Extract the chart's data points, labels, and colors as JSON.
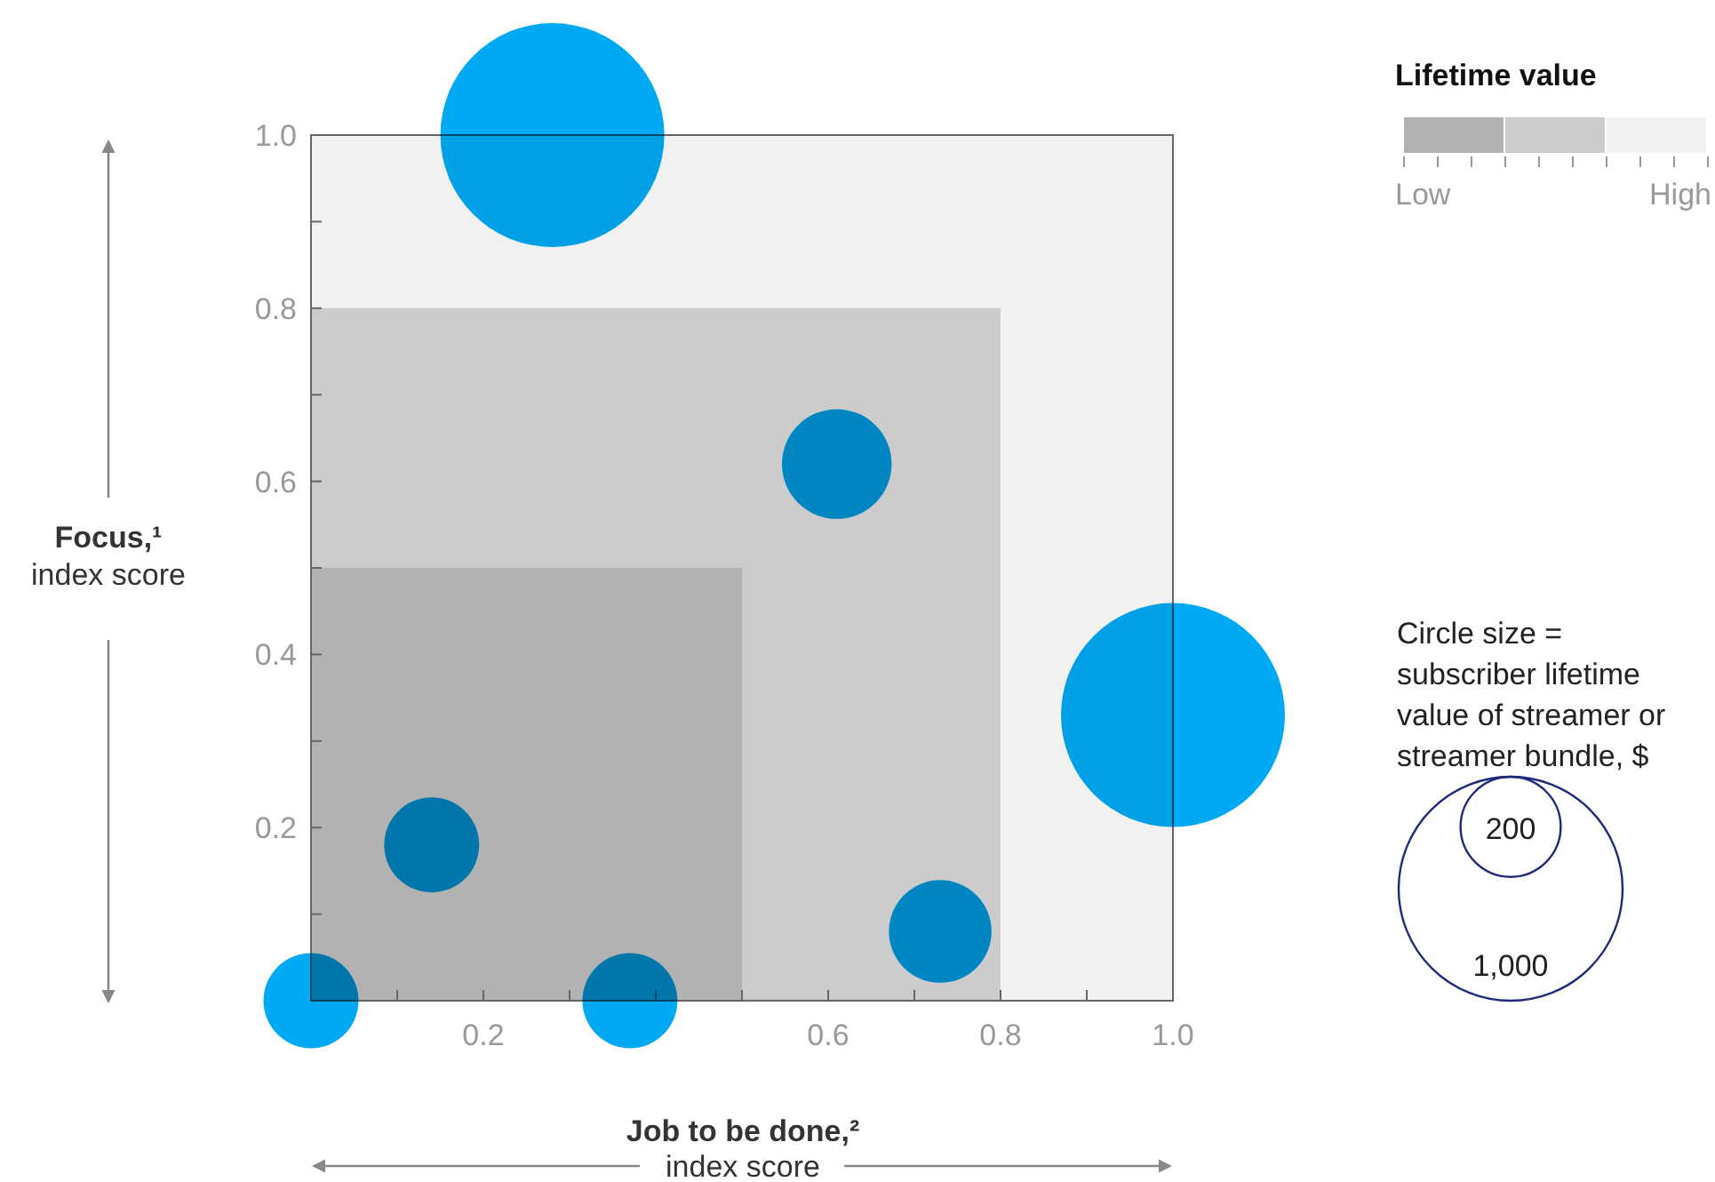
{
  "chart_data": {
    "type": "bubble",
    "xlabel": "Job to be done,²\nindex score",
    "ylabel": "Focus,¹\nindex score",
    "legend_title": "Lifetime value",
    "x": [
      0.28,
      0.61,
      1.0,
      0.14,
      0,
      0.37,
      0.73
    ],
    "series": [
      {
        "color": "#00a9f4",
        "values": [
          1.0,
          0.62,
          0.33,
          0.18,
          0,
          0,
          0.08
        ],
        "sizes": [
          1000,
          240,
          1000,
          180,
          180,
          180,
          210
        ]
      }
    ],
    "size_legend": [
      {
        "value": 200,
        "label": "200"
      },
      {
        "value": 1000,
        "label": "1,000"
      }
    ],
    "xlim": [
      0,
      1
    ],
    "ylim": [
      0,
      1
    ],
    "xticks": [
      {
        "value": 0.1,
        "label": null
      },
      0.2,
      {
        "value": 0.3,
        "label": null
      },
      {
        "value": 0.4,
        "label": null
      },
      {
        "value": 0.5,
        "label": null
      },
      0.6,
      {
        "value": 0.7,
        "label": null
      },
      0.8,
      {
        "value": 0.9,
        "label": null
      },
      {
        "value": 1,
        "label": "1.0"
      }
    ],
    "yticks": [
      {
        "value": 0.1,
        "label": null
      },
      0.2,
      {
        "value": 0.3,
        "label": null
      },
      0.4,
      {
        "value": 0.5,
        "label": null
      },
      0.6,
      {
        "value": 0.7,
        "label": null
      },
      0.8,
      {
        "value": 0.9,
        "label": null
      },
      {
        "value": 1,
        "label": "1.0"
      }
    ],
    "bands": [
      {
        "axis": "x",
        "from": 0,
        "to": 1,
        "color": "#f1f1f1"
      },
      {
        "axis": "x",
        "from": 0,
        "to": 0.8,
        "color": "#cccccc"
      },
      {
        "axis": "x",
        "from": 0,
        "to": 0.5,
        "color": "#b2b2b2"
      }
    ],
    "annotations": [
      "Low",
      "High",
      "Circle size =\nsubscriber lifetime\nvalue of streamer or\nstreamer bundle, $"
    ],
    "grid": false
  }
}
